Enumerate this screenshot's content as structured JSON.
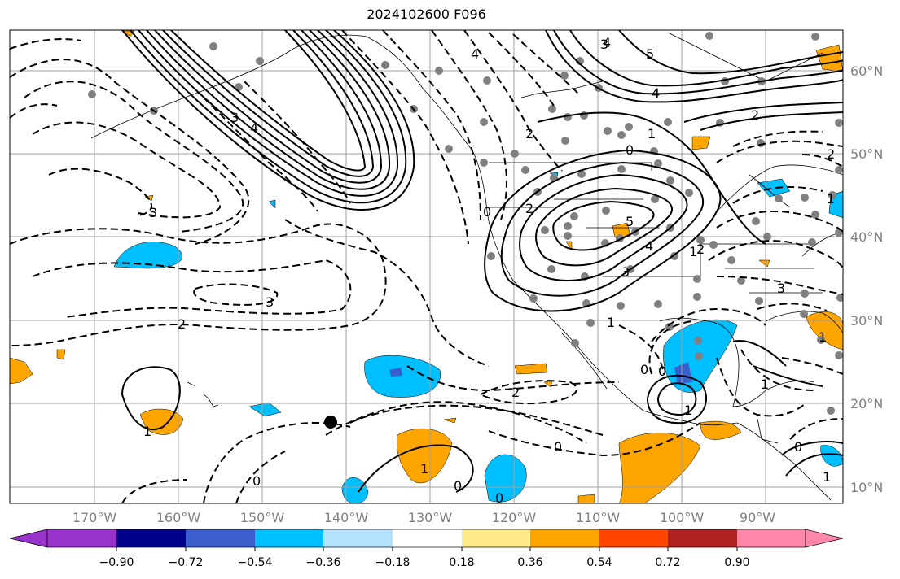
{
  "title": "2024102600 F096",
  "lon_labels": [
    "170°W",
    "160°W",
    "150°W",
    "140°W",
    "130°W",
    "120°W",
    "110°W",
    "100°W",
    "90°W"
  ],
  "lat_labels": [
    "60°N",
    "50°N",
    "40°N",
    "30°N",
    "20°N",
    "10°N"
  ],
  "colorbar": {
    "tick_labels": [
      "−0.90",
      "−0.72",
      "−0.54",
      "−0.36",
      "−0.18",
      "0.18",
      "0.36",
      "0.54",
      "0.72",
      "0.90"
    ],
    "colors": [
      "#9932CC",
      "#00008B",
      "#3A5FCD",
      "#00BFFF",
      "#B2E2FF",
      "#FFFFFF",
      "#FFEA8A",
      "#FFA500",
      "#FF4500",
      "#B22222",
      "#FF88AA"
    ]
  },
  "contour_labels": [
    "4",
    "5",
    "4",
    "4",
    "0",
    "1",
    "2",
    "2",
    "4",
    "3",
    "2",
    "2",
    "5",
    "0",
    "3",
    "4",
    "3",
    "1",
    "2",
    "3",
    "0",
    "0",
    "1",
    "1",
    "1",
    "0",
    "2",
    "0",
    "1",
    "1",
    "3",
    "3",
    "2",
    "0",
    "1",
    "0",
    "0",
    "1",
    "1"
  ],
  "colors": {
    "blue_fill": "#00BFFF",
    "purple_fill": "#3A5FCD",
    "orange_fill": "#FFA500",
    "grid": "#A0A0A0",
    "station": "#808080"
  }
}
